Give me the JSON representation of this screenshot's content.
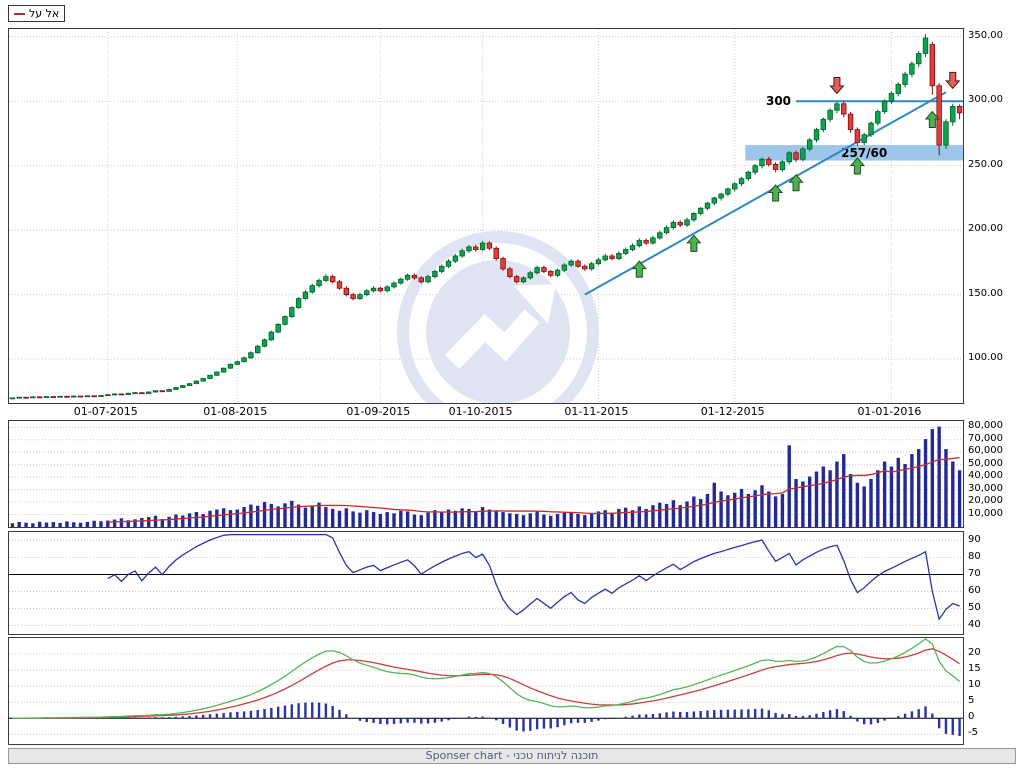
{
  "app": {
    "legend_symbol": "אל על",
    "status_bar": "Sponser chart - תוכנה לניתוח טכני"
  },
  "colors": {
    "candle_up": "#00a94f",
    "candle_up_border": "#0a5a2a",
    "candle_down": "#e53b3b",
    "candle_down_border": "#7c1010",
    "volume_bar": "#232a96",
    "volume_ma": "#cc2a2a",
    "rsi_line": "#2b35a8",
    "macd_line": "#57b557",
    "signal_line": "#c94040",
    "histogram": "#2a35a5",
    "level_blue": "#2f86c8",
    "band": "#9cc7ea",
    "arrow_up": "#4db24d",
    "arrow_down": "#e06060",
    "watermark": "#e0e3f2"
  },
  "chart_data": {
    "type": "candlestick_with_indicators",
    "symbol": "אל על",
    "x_axis": {
      "month_labels": [
        {
          "label": "01-07-2015",
          "index": 14
        },
        {
          "label": "01-08-2015",
          "index": 33
        },
        {
          "label": "01-09-2015",
          "index": 54
        },
        {
          "label": "01-10-2015",
          "index": 69
        },
        {
          "label": "01-11-2015",
          "index": 86
        },
        {
          "label": "01-12-2015",
          "index": 106
        },
        {
          "label": "01-01-2016",
          "index": 129
        }
      ]
    },
    "price_axis": {
      "ticks": [
        100,
        150,
        200,
        250,
        300,
        350
      ],
      "min": 66,
      "max": 356
    },
    "candles": [
      [
        69.8,
        70.3,
        69.6,
        70
      ],
      [
        70,
        70.8,
        69.9,
        70.5
      ],
      [
        70.5,
        70.7,
        70,
        70.2
      ],
      [
        70.2,
        71,
        70.1,
        70.8
      ],
      [
        70.8,
        71,
        70.2,
        70.4
      ],
      [
        70.4,
        71.2,
        70.3,
        71
      ],
      [
        71,
        71.1,
        70.4,
        70.6
      ],
      [
        70.6,
        71.4,
        70.5,
        71.2
      ],
      [
        71.2,
        71.3,
        70.6,
        70.8
      ],
      [
        70.8,
        71.6,
        70.7,
        71.4
      ],
      [
        71.4,
        71.5,
        70.8,
        71
      ],
      [
        71,
        71.8,
        70.9,
        71.6
      ],
      [
        71.6,
        71.7,
        71,
        71.2
      ],
      [
        71.2,
        72,
        71.1,
        71.8
      ],
      [
        71.8,
        73,
        71.6,
        72.5
      ],
      [
        72.5,
        73.5,
        72.2,
        73
      ],
      [
        73,
        73.3,
        72.3,
        72.6
      ],
      [
        72.6,
        74,
        72.4,
        73.5
      ],
      [
        73.5,
        74.5,
        73.2,
        74
      ],
      [
        74,
        74.2,
        73,
        73.4
      ],
      [
        73.4,
        75,
        73.2,
        74.5
      ],
      [
        74.5,
        76,
        74.2,
        75.5
      ],
      [
        75.5,
        75.8,
        74.6,
        75
      ],
      [
        75,
        77,
        74.8,
        76.5
      ],
      [
        76.5,
        78.5,
        76.2,
        78
      ],
      [
        78,
        80,
        77.7,
        79.5
      ],
      [
        79.5,
        81.5,
        79.2,
        81
      ],
      [
        81,
        83.5,
        80.7,
        83
      ],
      [
        83,
        85.5,
        82.6,
        85
      ],
      [
        85,
        88,
        84.6,
        87.5
      ],
      [
        87.5,
        90.5,
        87,
        90
      ],
      [
        90,
        93.5,
        89.5,
        93
      ],
      [
        93,
        96.7,
        92.5,
        96
      ],
      [
        96,
        98.9,
        95.4,
        98
      ],
      [
        98,
        102,
        97.5,
        101
      ],
      [
        101,
        106,
        100.3,
        105
      ],
      [
        105,
        111,
        104.2,
        110
      ],
      [
        110,
        116,
        109.2,
        115
      ],
      [
        115,
        122,
        114.2,
        121
      ],
      [
        121,
        128,
        120.1,
        127
      ],
      [
        127,
        134,
        126.1,
        133
      ],
      [
        133,
        141,
        132,
        140
      ],
      [
        140,
        148,
        139,
        147
      ],
      [
        147,
        153.5,
        145.8,
        152
      ],
      [
        152,
        158.5,
        150.8,
        157
      ],
      [
        157,
        162.5,
        155.6,
        161
      ],
      [
        161,
        165.8,
        159.8,
        164
      ],
      [
        164,
        165.5,
        158.8,
        160
      ],
      [
        160,
        161.5,
        153.8,
        155
      ],
      [
        155,
        156.5,
        148.7,
        150
      ],
      [
        150,
        151.5,
        145.6,
        147
      ],
      [
        147,
        151.4,
        145.9,
        150
      ],
      [
        150,
        154.4,
        148.8,
        153
      ],
      [
        153,
        156.5,
        151.7,
        155
      ],
      [
        155,
        156.2,
        151.8,
        153
      ],
      [
        153,
        157.3,
        151.9,
        156
      ],
      [
        156,
        160.3,
        154.8,
        159
      ],
      [
        159,
        163.3,
        157.8,
        162
      ],
      [
        162,
        166.4,
        160.7,
        165
      ],
      [
        165,
        166.4,
        161.7,
        163
      ],
      [
        163,
        164.3,
        158.6,
        160
      ],
      [
        160,
        165.4,
        158.8,
        164
      ],
      [
        164,
        169.4,
        162.7,
        168
      ],
      [
        168,
        173.5,
        166.6,
        172
      ],
      [
        172,
        177.5,
        170.6,
        176
      ],
      [
        176,
        181.5,
        174.5,
        180
      ],
      [
        180,
        185.6,
        178.5,
        184
      ],
      [
        184,
        188.6,
        182.4,
        187
      ],
      [
        187,
        188.8,
        183.3,
        185
      ],
      [
        185,
        191.7,
        183.9,
        190
      ],
      [
        190,
        191.5,
        184.5,
        186
      ],
      [
        186,
        187.5,
        176.4,
        178
      ],
      [
        178,
        179.5,
        168.5,
        170
      ],
      [
        170,
        171.4,
        162.6,
        164
      ],
      [
        164,
        165.3,
        158.7,
        160
      ],
      [
        160,
        164.3,
        158.8,
        163
      ],
      [
        163,
        168.4,
        161.7,
        167
      ],
      [
        167,
        172.4,
        165.7,
        171
      ],
      [
        171,
        172.4,
        166.7,
        168
      ],
      [
        168,
        169.3,
        163.6,
        165
      ],
      [
        165,
        170.4,
        163.7,
        169
      ],
      [
        169,
        174.4,
        167.6,
        173
      ],
      [
        173,
        177.5,
        171.6,
        176
      ],
      [
        176,
        177.4,
        170.6,
        172
      ],
      [
        172,
        173.4,
        168.6,
        170
      ],
      [
        170,
        175.4,
        168.7,
        174
      ],
      [
        174,
        178.6,
        172.9,
        177
      ],
      [
        177,
        181.6,
        175.8,
        180
      ],
      [
        180,
        181.5,
        176.5,
        178
      ],
      [
        178,
        183.6,
        176.8,
        182
      ],
      [
        182,
        186.6,
        180.7,
        185
      ],
      [
        185,
        189.7,
        183.7,
        188
      ],
      [
        188,
        193.7,
        186.6,
        192
      ],
      [
        192,
        193.6,
        188.5,
        190
      ],
      [
        190,
        195.7,
        188.8,
        194
      ],
      [
        194,
        199.7,
        192.6,
        198
      ],
      [
        198,
        203.8,
        196.6,
        202
      ],
      [
        202,
        207.8,
        200.5,
        206
      ],
      [
        206,
        207.7,
        202.4,
        204
      ],
      [
        204,
        209.8,
        202.6,
        208
      ],
      [
        208,
        214,
        206.5,
        213
      ],
      [
        213,
        218,
        211.4,
        217
      ],
      [
        217,
        222,
        215.4,
        221
      ],
      [
        221,
        226,
        219.3,
        225
      ],
      [
        225,
        229,
        222.9,
        228
      ],
      [
        228,
        233.1,
        226.3,
        232
      ],
      [
        232,
        237.2,
        230.2,
        236
      ],
      [
        236,
        241.2,
        234.1,
        240
      ],
      [
        240,
        246.2,
        238,
        245
      ],
      [
        245,
        251.3,
        243,
        250
      ],
      [
        250,
        256.3,
        247.9,
        255
      ],
      [
        255,
        256.8,
        249.4,
        251
      ],
      [
        251,
        252.7,
        244.9,
        247
      ],
      [
        247,
        254.3,
        245.3,
        253
      ],
      [
        253,
        261.3,
        251.2,
        260
      ],
      [
        260,
        261.6,
        252.8,
        255
      ],
      [
        255,
        264.3,
        253.4,
        263
      ],
      [
        263,
        271.4,
        261.2,
        270
      ],
      [
        270,
        279.4,
        268.1,
        278
      ],
      [
        278,
        287.4,
        276,
        286
      ],
      [
        286,
        294.5,
        283.9,
        293
      ],
      [
        293,
        299.5,
        290.8,
        298
      ],
      [
        298,
        299.9,
        287.6,
        290
      ],
      [
        290,
        291.8,
        275.5,
        278
      ],
      [
        278,
        279.7,
        265.4,
        268
      ],
      [
        268,
        275.3,
        266,
        274
      ],
      [
        274,
        284.4,
        272.2,
        283
      ],
      [
        283,
        293.5,
        281.1,
        292
      ],
      [
        292,
        301.5,
        290,
        300
      ],
      [
        300,
        307.7,
        297.9,
        306
      ],
      [
        306,
        314.8,
        303.8,
        313
      ],
      [
        313,
        322.8,
        310.7,
        321
      ],
      [
        321,
        330.9,
        318.6,
        329
      ],
      [
        329,
        338.9,
        326.5,
        337
      ],
      [
        337,
        352,
        334.4,
        349
      ],
      [
        344,
        346,
        305,
        312
      ],
      [
        312,
        314,
        258,
        266
      ],
      [
        266,
        286,
        263,
        284
      ],
      [
        284,
        298,
        281,
        296
      ],
      [
        296,
        297.5,
        286,
        291
      ]
    ],
    "volumes": [
      3000,
      4000,
      3500,
      3000,
      4200,
      3600,
      4000,
      3200,
      4500,
      3800,
      3400,
      4100,
      5000,
      4600,
      5200,
      6000,
      7000,
      5400,
      6200,
      7200,
      8000,
      9000,
      6400,
      8200,
      10000,
      9200,
      11000,
      12000,
      10400,
      13000,
      14000,
      15000,
      13500,
      14000,
      16000,
      18000,
      17000,
      20000,
      18500,
      16500,
      19000,
      21000,
      18000,
      15500,
      17000,
      19500,
      16000,
      14500,
      13000,
      15000,
      12500,
      11500,
      13500,
      12000,
      10500,
      12000,
      11000,
      13000,
      12500,
      10000,
      9500,
      11500,
      13500,
      12000,
      14000,
      13000,
      15000,
      14500,
      12500,
      16000,
      14000,
      13000,
      12000,
      11000,
      10500,
      9500,
      11000,
      12500,
      10000,
      9000,
      10500,
      11500,
      12000,
      10500,
      9500,
      11000,
      12500,
      13500,
      11500,
      14500,
      15500,
      13500,
      16500,
      14500,
      17500,
      19500,
      18500,
      21500,
      17500,
      20500,
      24500,
      22500,
      26500,
      35500,
      28500,
      25500,
      27500,
      30500,
      26500,
      29500,
      33500,
      28500,
      24500,
      26500,
      65500,
      38500,
      36500,
      40500,
      44500,
      48500,
      45500,
      52500,
      58500,
      42500,
      35500,
      32500,
      38500,
      45500,
      52500,
      48500,
      55500,
      50500,
      58500,
      62500,
      70500,
      78500,
      80500,
      62500,
      52500,
      45500
    ],
    "volume_axis": {
      "ticks": [
        10000,
        20000,
        30000,
        40000,
        50000,
        60000,
        70000,
        80000
      ],
      "max": 85000
    },
    "volume_ma_period": 15,
    "rsi": {
      "period": 14,
      "axis_ticks": [
        40,
        50,
        60,
        70,
        80,
        90
      ],
      "ref_line": 70,
      "min": 35,
      "max": 95
    },
    "macd": {
      "fast": 12,
      "slow": 26,
      "signal_period": 9,
      "axis_ticks": [
        -5,
        0,
        5,
        10,
        15,
        20
      ],
      "min": -8,
      "max": 25
    },
    "annotations": {
      "resistance_line": {
        "price": 300,
        "from_index": 115,
        "label": "300"
      },
      "support_band": {
        "price_low": 254,
        "price_high": 266,
        "from_index": 108,
        "label": "257/60",
        "label_index": 125
      },
      "trendline": {
        "from_index": 84,
        "from_price": 150,
        "to_index": 137,
        "to_price": 307
      },
      "up_arrows": [
        {
          "index": 92,
          "price": 176
        },
        {
          "index": 100,
          "price": 196
        },
        {
          "index": 112,
          "price": 235
        },
        {
          "index": 115,
          "price": 243
        },
        {
          "index": 124,
          "price": 256
        },
        {
          "index": 135,
          "price": 292
        }
      ],
      "down_arrows": [
        {
          "index": 121,
          "price": 306
        },
        {
          "index": 138,
          "price": 310
        }
      ]
    }
  }
}
